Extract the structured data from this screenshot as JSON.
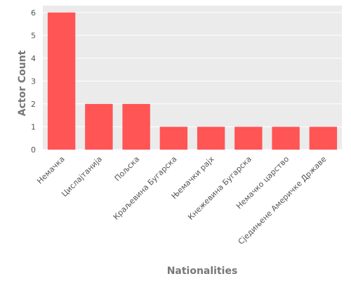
{
  "chart_data": {
    "type": "bar",
    "categories": [
      "Немачка",
      "Цислајтанија",
      "Пољска",
      "Краљевина Бугарска",
      "Њемачки рајх",
      "Кнежевина Бугарска",
      "Немачко царство",
      "Сједињене Америчке Државе"
    ],
    "values": [
      6,
      2,
      2,
      1,
      1,
      1,
      1,
      1
    ],
    "xlabel": "Nationalities",
    "ylabel": "Actor Count",
    "ylim": [
      0,
      6.3
    ],
    "yticks": [
      0,
      1,
      2,
      3,
      4,
      5,
      6
    ],
    "grid": true,
    "colors": {
      "bar": "#ff5555",
      "background": "#ebebeb",
      "grid": "#ffffff"
    }
  }
}
